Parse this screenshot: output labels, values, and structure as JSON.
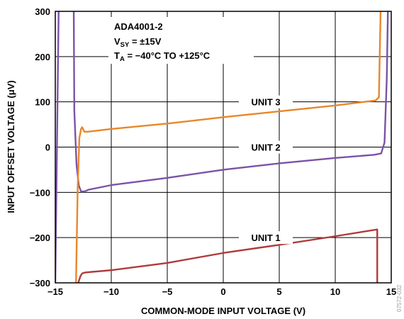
{
  "chart_data": {
    "type": "line",
    "title": "",
    "xlabel": "COMMON-MODE INPUT VOLTAGE (V)",
    "ylabel": "INPUT OFFSET VOLTAGE (μV)",
    "xlim": [
      -15,
      15
    ],
    "ylim": [
      -300,
      300
    ],
    "x_ticks": [
      "−15",
      "−10",
      "−5",
      "0",
      "5",
      "10",
      "15"
    ],
    "y_ticks": [
      "300",
      "200",
      "100",
      "0",
      "−100",
      "−200",
      "−300"
    ],
    "grid": true,
    "legend": "none",
    "annotation": {
      "part": "ADA4001-2",
      "vsy_main": "V",
      "vsy_sub": "SY",
      "vsy_rest": " = ±15V",
      "ta_main": "T",
      "ta_sub": "A",
      "ta_rest": " = −40°C TO +125°C"
    },
    "series": [
      {
        "name": "UNIT 1",
        "color": "#b03a3a",
        "label_at": [
          3.8,
          -200
        ],
        "points": [
          [
            -12.95,
            -400
          ],
          [
            -12.95,
            -300
          ],
          [
            -12.75,
            -285
          ],
          [
            -12.6,
            -279
          ],
          [
            -12.3,
            -277
          ],
          [
            -10,
            -272
          ],
          [
            -5,
            -256
          ],
          [
            0,
            -234
          ],
          [
            5,
            -216
          ],
          [
            10,
            -197
          ],
          [
            13.75,
            -182
          ],
          [
            13.75,
            -300
          ],
          [
            13.75,
            -400
          ]
        ]
      },
      {
        "name": "UNIT 2",
        "color": "#7b53a6",
        "label_at": [
          3.8,
          0
        ],
        "points": [
          [
            -15.0,
            -400
          ],
          [
            -15.0,
            -300
          ],
          [
            -14.7,
            300
          ],
          [
            -14.7,
            400
          ],
          [
            -13.35,
            400
          ],
          [
            -13.35,
            300
          ],
          [
            -13.3,
            80
          ],
          [
            -13.1,
            -40
          ],
          [
            -12.9,
            -85
          ],
          [
            -12.7,
            -98
          ],
          [
            -12.4,
            -98
          ],
          [
            -12,
            -94
          ],
          [
            -10,
            -84
          ],
          [
            -5,
            -68
          ],
          [
            0,
            -50
          ],
          [
            5,
            -36
          ],
          [
            10,
            -24
          ],
          [
            13.5,
            -17
          ],
          [
            14.1,
            -14
          ],
          [
            14.4,
            10
          ],
          [
            14.6,
            150
          ],
          [
            14.7,
            300
          ],
          [
            14.7,
            400
          ]
        ]
      },
      {
        "name": "UNIT 3",
        "color": "#e8872a",
        "label_at": [
          3.8,
          100
        ],
        "points": [
          [
            -13.15,
            -400
          ],
          [
            -13.15,
            -300
          ],
          [
            -13.0,
            -90
          ],
          [
            -12.85,
            20
          ],
          [
            -12.7,
            40
          ],
          [
            -12.6,
            44
          ],
          [
            -12.4,
            34
          ],
          [
            -12.1,
            34
          ],
          [
            -10,
            40
          ],
          [
            -5,
            52
          ],
          [
            0,
            66
          ],
          [
            5,
            79
          ],
          [
            10,
            92
          ],
          [
            13.6,
            103
          ],
          [
            13.9,
            110
          ],
          [
            14.05,
            300
          ],
          [
            14.1,
            400
          ]
        ]
      }
    ]
  },
  "side_code": "07572-032"
}
